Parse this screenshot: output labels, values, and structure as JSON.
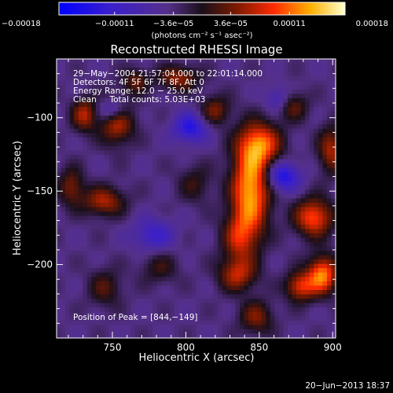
{
  "chart_data": {
    "type": "heatmap",
    "title": "Reconstructed RHESSI Image",
    "xlabel": "Heliocentric X (arcsec)",
    "ylabel": "Heliocentric Y (arcsec)",
    "xlim": [
      712,
      902
    ],
    "ylim": [
      -250,
      -60
    ],
    "x_ticks": [
      750,
      800,
      850,
      900
    ],
    "x_tick_labels": [
      "750",
      "800",
      "850",
      "900"
    ],
    "y_ticks": [
      -100,
      -150,
      -200
    ],
    "y_tick_labels": [
      "−100",
      "−150",
      "−200"
    ],
    "colorbar": {
      "range": [
        -0.00018,
        0.00018
      ],
      "tick_values": [
        -0.00018,
        -0.00011,
        -3.6e-05,
        3.6e-05,
        0.00011,
        0.00018
      ],
      "tick_labels": [
        "−0.00018",
        "−0.00011",
        "−3.6e−05",
        "3.6e−05",
        "0.00011",
        "0.00018"
      ],
      "unit_label": "(photons cm⁻² s⁻¹ asec⁻²)"
    },
    "annotations": [
      "29−May−2004 21:57:04.000 to 22:01:14.000",
      "Detectors: 4F 5F 6F 7F 8F, Att 0",
      "Energy Range: 12.0 − 25.0 keV",
      "Clean     Total counts: 5.03E+03"
    ],
    "peak_label": "Position of Peak = [844,−149]",
    "peak": [
      844,
      -149
    ],
    "sources": [
      {
        "x": 844,
        "y": -149,
        "value": 0.00018,
        "sx": 9,
        "sy": 22
      },
      {
        "x": 851,
        "y": -118,
        "value": 0.00013,
        "sx": 10,
        "sy": 10
      },
      {
        "x": 836,
        "y": -182,
        "value": 9e-05,
        "sx": 8,
        "sy": 12
      },
      {
        "x": 753,
        "y": -101,
        "value": 0.00013,
        "sx": 8,
        "sy": 11
      },
      {
        "x": 731,
        "y": -98,
        "value": 0.0001,
        "sx": 6,
        "sy": 8
      },
      {
        "x": 744,
        "y": -157,
        "value": 0.0001,
        "sx": 10,
        "sy": 7
      },
      {
        "x": 722,
        "y": -147,
        "value": 8e-05,
        "sx": 6,
        "sy": 9
      },
      {
        "x": 795,
        "y": -73,
        "value": 9e-05,
        "sx": 10,
        "sy": 6
      },
      {
        "x": 820,
        "y": -95,
        "value": 8e-05,
        "sx": 7,
        "sy": 7
      },
      {
        "x": 887,
        "y": -168,
        "value": 0.00014,
        "sx": 9,
        "sy": 9
      },
      {
        "x": 899,
        "y": -122,
        "value": 0.0001,
        "sx": 6,
        "sy": 11
      },
      {
        "x": 893,
        "y": -207,
        "value": 0.00016,
        "sx": 7,
        "sy": 9
      },
      {
        "x": 878,
        "y": -215,
        "value": 0.00012,
        "sx": 7,
        "sy": 7
      },
      {
        "x": 835,
        "y": -207,
        "value": 0.0001,
        "sx": 9,
        "sy": 8
      },
      {
        "x": 848,
        "y": -236,
        "value": 8e-05,
        "sx": 8,
        "sy": 8
      },
      {
        "x": 745,
        "y": -216,
        "value": 6e-05,
        "sx": 8,
        "sy": 9
      },
      {
        "x": 782,
        "y": -202,
        "value": 5e-05,
        "sx": 9,
        "sy": 8
      },
      {
        "x": 806,
        "y": -145,
        "value": 5e-05,
        "sx": 8,
        "sy": 9
      },
      {
        "x": 873,
        "y": -92,
        "value": 7e-05,
        "sx": 7,
        "sy": 7
      },
      {
        "x": 766,
        "y": -75,
        "value": 7e-05,
        "sx": 6,
        "sy": 6
      },
      {
        "x": 751,
        "y": -95,
        "value": -0.00012,
        "sx": 7,
        "sy": 6
      },
      {
        "x": 803,
        "y": -107,
        "value": -0.0001,
        "sx": 8,
        "sy": 7
      },
      {
        "x": 866,
        "y": -140,
        "value": -0.00011,
        "sx": 8,
        "sy": 7
      },
      {
        "x": 778,
        "y": -180,
        "value": -7e-05,
        "sx": 10,
        "sy": 8
      },
      {
        "x": 863,
        "y": -87,
        "value": -6e-05,
        "sx": 6,
        "sy": 6
      }
    ]
  },
  "footer": {
    "date": "20−Jun−2013 18:37"
  }
}
